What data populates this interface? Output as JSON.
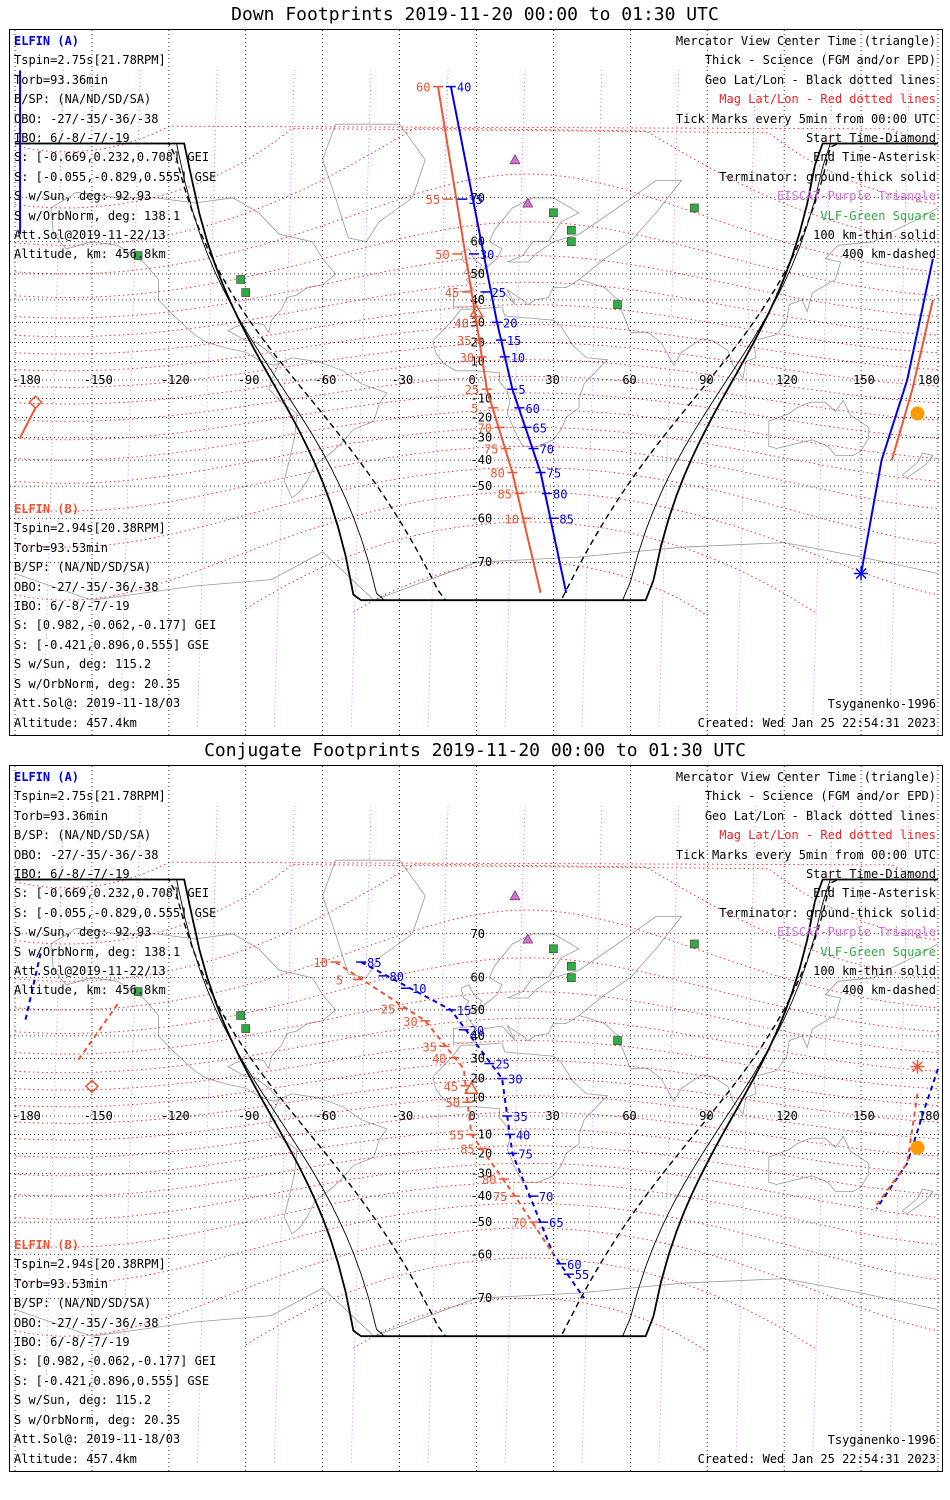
{
  "panels": [
    {
      "title": "Down Footprints 2019-11-20 00:00 to 01:30 UTC",
      "craftA": {
        "name": "ELFIN (A)",
        "lines": [
          "Tspin=2.75s[21.78RPM]",
          "Torb=93.36min",
          "B/SP: (NA/ND/SD/SA)",
          "OBO: -27/-35/-36/-38",
          "IBO: 6/-8/-7/-19",
          "S: [-0.669,0.232,0.708] GEI",
          "S: [-0.055,-0.829,0.555] GSE",
          "S w/Sun, deg: 92.93",
          "S w/OrbNorm, deg: 138.1",
          "Att.Sol@2019-11-22/13",
          "Altitude, km: 456.8km"
        ]
      },
      "craftB": {
        "name": "ELFIN (B)",
        "lines": [
          "Tspin=2.94s[20.38RPM]",
          "Torb=93.53min",
          "B/SP: (NA/ND/SD/SA)",
          "OBO: -27/-35/-36/-38",
          "IBO: 6/-8/-7/-19",
          "S: [0.982,-0.062,-0.177] GEI",
          "S: [-0.421,0.896,0.555] GSE",
          "S w/Sun, deg: 115.2",
          "S w/OrbNorm, deg: 20.35",
          "Att.Sol@: 2019-11-18/03",
          "Altitude: 457.4km"
        ]
      },
      "legend": [
        "Mercator View Center Time (triangle)",
        "Thick - Science (FGM and/or EPD)",
        "Geo Lat/Lon - Black dotted lines",
        "Mag Lat/Lon - Red dotted lines",
        "Tick Marks every 5min from 00:00 UTC",
        "Start Time-Diamond",
        "End Time-Asterisk",
        "Terminator: ground-thick solid",
        "EISCAT-Purple Triangle",
        "VLF-Green Square",
        "100 km-thin solid",
        "400 km-dashed"
      ],
      "model": "Tsyganenko-1996",
      "created": "Created: Wed Jan 25 22:54:31 2023",
      "lonLabels": [
        "-180",
        "-150",
        "-120",
        "-90",
        "-60",
        "-30",
        "0",
        "30",
        "60",
        "90",
        "120",
        "150",
        "180"
      ],
      "latLabels": [
        "70",
        "60",
        "50",
        "40",
        "30",
        "20",
        "10",
        "0",
        "-10",
        "-20",
        "-30",
        "-40",
        "-50",
        "-60",
        "-70"
      ],
      "tracks": [
        {
          "craft": "A",
          "color": "#0000ee",
          "dashed": false,
          "side": "right",
          "labels": [
            "40",
            "35",
            "30",
            "25",
            "20",
            "15",
            "10",
            "5",
            "60",
            "65",
            "70",
            "75",
            "80",
            "85"
          ]
        },
        {
          "craft": "B",
          "color": "#ee5533",
          "dashed": false,
          "side": "left",
          "labels": [
            "60",
            "55",
            "50",
            "45",
            "40",
            "35",
            "30",
            "25",
            "5",
            "70",
            "75",
            "80",
            "85",
            "10"
          ]
        }
      ]
    },
    {
      "title": "Conjugate Footprints 2019-11-20 00:00 to 01:30 UTC",
      "craftA": {
        "name": "ELFIN (A)",
        "lines": [
          "Tspin=2.75s[21.78RPM]",
          "Torb=93.36min",
          "B/SP: (NA/ND/SD/SA)",
          "OBO: -27/-35/-36/-38",
          "IBO: 6/-8/-7/-19",
          "S: [-0.669,0.232,0.708] GEI",
          "S: [-0.055,-0.829,0.555] GSE",
          "S w/Sun, deg: 92.93",
          "S w/OrbNorm, deg: 138.1",
          "Att.Sol@2019-11-22/13",
          "Altitude, km: 456.8km"
        ]
      },
      "craftB": {
        "name": "ELFIN (B)",
        "lines": [
          "Tspin=2.94s[20.38RPM]",
          "Torb=93.53min",
          "B/SP: (NA/ND/SD/SA)",
          "OBO: -27/-35/-36/-38",
          "IBO: 6/-8/-7/-19",
          "S: [0.982,-0.062,-0.177] GEI",
          "S: [-0.421,0.896,0.555] GSE",
          "S w/Sun, deg: 115.2",
          "S w/OrbNorm, deg: 20.35",
          "Att.Sol@: 2019-11-18/03",
          "Altitude: 457.4km"
        ]
      },
      "legend": [
        "Mercator View Center Time (triangle)",
        "Thick - Science (FGM and/or EPD)",
        "Geo Lat/Lon - Black dotted lines",
        "Mag Lat/Lon - Red dotted lines",
        "Tick Marks every 5min from 00:00 UTC",
        "Start Time-Diamond",
        "End Time-Asterisk",
        "Terminator: ground-thick solid",
        "EISCAT-Purple Triangle",
        "VLF-Green Square",
        "100 km-thin solid",
        "400 km-dashed"
      ],
      "model": "Tsyganenko-1996",
      "created": "Created: Wed Jan 25 22:54:31 2023",
      "lonLabels": [
        "-180",
        "-150",
        "-120",
        "-90",
        "-60",
        "-30",
        "0",
        "30",
        "60",
        "90",
        "120",
        "150",
        "180"
      ],
      "latLabels": [
        "70",
        "60",
        "50",
        "40",
        "30",
        "20",
        "10",
        "0",
        "-10",
        "-20",
        "-30",
        "-40",
        "-50",
        "-60",
        "-70"
      ],
      "tracks": [
        {
          "craft": "A",
          "color": "#0000ee",
          "dashed": true,
          "side": "right",
          "labels": [
            "85",
            "80",
            "10",
            "15",
            "20",
            "25",
            "30",
            "35",
            "40",
            "75",
            "70",
            "65",
            "60",
            "55"
          ]
        },
        {
          "craft": "B",
          "color": "#ee5533",
          "dashed": true,
          "side": "left",
          "labels": [
            "10",
            "5",
            "25",
            "30",
            "35",
            "40",
            "45",
            "50",
            "55",
            "85",
            "80",
            "75",
            "70"
          ]
        }
      ]
    }
  ],
  "colors": {
    "craftA": "#0000ee",
    "craftB": "#ee5533",
    "magGrid": "#ee2222",
    "geoGrid": "#000000",
    "eiscat": "#dd66dd",
    "vlf": "#33aa44",
    "sun": "#ff9900",
    "coast": "#999999",
    "terminator": "#000000"
  },
  "icons": {
    "eiscat": "purple-triangle-icon",
    "vlf": "green-square-icon",
    "start": "diamond-icon",
    "end": "asterisk-icon",
    "center": "triangle-icon",
    "sun": "sun-dot-icon"
  }
}
